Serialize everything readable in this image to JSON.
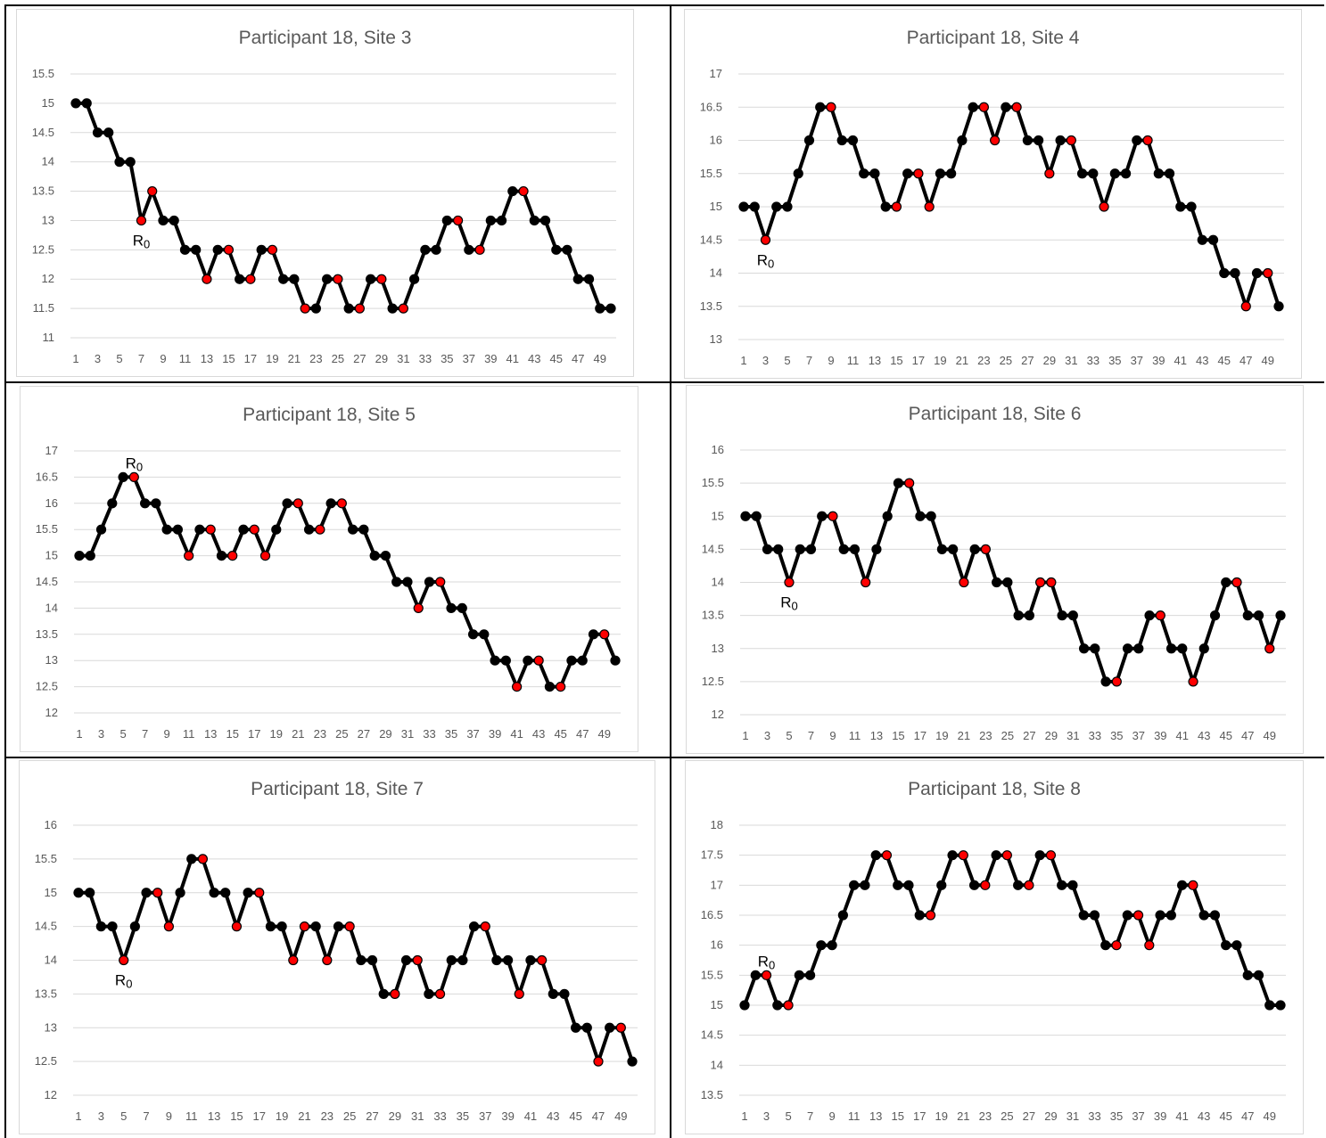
{
  "chart_data": [
    {
      "type": "line",
      "title": "Participant 18, Site 3",
      "xlabel": "",
      "ylabel": "",
      "ylim": [
        11,
        15.5
      ],
      "ystep": 0.5,
      "x_tick_labels": [
        "1",
        "3",
        "5",
        "7",
        "9",
        "11",
        "13",
        "15",
        "17",
        "19",
        "21",
        "23",
        "25",
        "27",
        "29",
        "31",
        "33",
        "35",
        "37",
        "39",
        "41",
        "43",
        "45",
        "47",
        "49"
      ],
      "y_tick_labels": [
        "11",
        "11.5",
        "12",
        "12.5",
        "13",
        "13.5",
        "14",
        "14.5",
        "15",
        "15.5"
      ],
      "values": [
        15,
        15,
        14.5,
        14.5,
        14,
        14,
        13,
        13.5,
        13,
        13,
        12.5,
        12.5,
        12,
        12.5,
        12.5,
        12,
        12,
        12.5,
        12.5,
        12,
        12,
        11.5,
        11.5,
        12,
        12,
        11.5,
        11.5,
        12,
        12,
        11.5,
        11.5,
        12,
        12.5,
        12.5,
        13,
        13,
        12.5,
        12.5,
        13,
        13,
        13.5,
        13.5,
        13,
        13,
        12.5,
        12.5,
        12,
        12,
        11.5,
        11.5
      ],
      "red_points": [
        7,
        8,
        13,
        15,
        17,
        19,
        22,
        25,
        27,
        29,
        31,
        36,
        38,
        42
      ],
      "annotation": {
        "text": "R0",
        "label_base": "R",
        "label_sub": "0",
        "x": 7,
        "position": "below"
      },
      "line_color": "#000000",
      "marker_color": "#000000",
      "highlight_color": "#ff0000",
      "grid": true
    },
    {
      "type": "line",
      "title": "Participant 18, Site 4",
      "xlabel": "",
      "ylabel": "",
      "ylim": [
        13,
        17
      ],
      "ystep": 0.5,
      "x_tick_labels": [
        "1",
        "3",
        "5",
        "7",
        "9",
        "11",
        "13",
        "15",
        "17",
        "19",
        "21",
        "23",
        "25",
        "27",
        "29",
        "31",
        "33",
        "35",
        "37",
        "39",
        "41",
        "43",
        "45",
        "47",
        "49"
      ],
      "y_tick_labels": [
        "13",
        "13.5",
        "14",
        "14.5",
        "15",
        "15.5",
        "16",
        "16.5",
        "17"
      ],
      "values": [
        15,
        15,
        14.5,
        15,
        15,
        15.5,
        16,
        16.5,
        16.5,
        16,
        16,
        15.5,
        15.5,
        15,
        15,
        15.5,
        15.5,
        15,
        15.5,
        15.5,
        16,
        16.5,
        16.5,
        16,
        16.5,
        16.5,
        16,
        16,
        15.5,
        16,
        16,
        15.5,
        15.5,
        15,
        15.5,
        15.5,
        16,
        16,
        15.5,
        15.5,
        15,
        15,
        14.5,
        14.5,
        14,
        14,
        13.5,
        14,
        14,
        13.5
      ],
      "red_points": [
        3,
        9,
        15,
        17,
        18,
        23,
        24,
        26,
        29,
        31,
        34,
        38,
        47,
        49
      ],
      "annotation": {
        "text": "R0",
        "label_base": "R",
        "label_sub": "0",
        "x": 3,
        "position": "below"
      },
      "line_color": "#000000",
      "marker_color": "#000000",
      "highlight_color": "#ff0000",
      "grid": true
    },
    {
      "type": "line",
      "title": "Participant 18, Site 5",
      "xlabel": "",
      "ylabel": "",
      "ylim": [
        12,
        17
      ],
      "ystep": 0.5,
      "x_tick_labels": [
        "1",
        "3",
        "5",
        "7",
        "9",
        "11",
        "13",
        "15",
        "17",
        "19",
        "21",
        "23",
        "25",
        "27",
        "29",
        "31",
        "33",
        "35",
        "37",
        "39",
        "41",
        "43",
        "45",
        "47",
        "49"
      ],
      "y_tick_labels": [
        "12",
        "12.5",
        "13",
        "13.5",
        "14",
        "14.5",
        "15",
        "15.5",
        "16",
        "16.5",
        "17"
      ],
      "values": [
        15,
        15,
        15.5,
        16,
        16.5,
        16.5,
        16,
        16,
        15.5,
        15.5,
        15,
        15.5,
        15.5,
        15,
        15,
        15.5,
        15.5,
        15,
        15.5,
        16,
        16,
        15.5,
        15.5,
        16,
        16,
        15.5,
        15.5,
        15,
        15,
        14.5,
        14.5,
        14,
        14.5,
        14.5,
        14,
        14,
        13.5,
        13.5,
        13,
        13,
        12.5,
        13,
        13,
        12.5,
        12.5,
        13,
        13,
        13.5,
        13.5,
        13
      ],
      "red_points": [
        6,
        11,
        13,
        15,
        17,
        18,
        21,
        23,
        25,
        32,
        34,
        41,
        43,
        45,
        49
      ],
      "annotation": {
        "text": "R0",
        "label_base": "R",
        "label_sub": "0",
        "x": 6,
        "position": "above"
      },
      "line_color": "#000000",
      "marker_color": "#000000",
      "highlight_color": "#ff0000",
      "grid": true
    },
    {
      "type": "line",
      "title": "Participant 18, Site 6",
      "xlabel": "",
      "ylabel": "",
      "ylim": [
        12,
        16
      ],
      "ystep": 0.5,
      "x_tick_labels": [
        "1",
        "3",
        "5",
        "7",
        "9",
        "11",
        "13",
        "15",
        "17",
        "19",
        "21",
        "23",
        "25",
        "27",
        "29",
        "31",
        "33",
        "35",
        "37",
        "39",
        "41",
        "43",
        "45",
        "47",
        "49"
      ],
      "y_tick_labels": [
        "12",
        "12.5",
        "13",
        "13.5",
        "14",
        "14.5",
        "15",
        "15.5",
        "16"
      ],
      "values": [
        15,
        15,
        14.5,
        14.5,
        14,
        14.5,
        14.5,
        15,
        15,
        14.5,
        14.5,
        14,
        14.5,
        15,
        15.5,
        15.5,
        15,
        15,
        14.5,
        14.5,
        14,
        14.5,
        14.5,
        14,
        14,
        13.5,
        13.5,
        14,
        14,
        13.5,
        13.5,
        13,
        13,
        12.5,
        12.5,
        13,
        13,
        13.5,
        13.5,
        13,
        13,
        12.5,
        13,
        13.5,
        14,
        14,
        13.5,
        13.5,
        13,
        13.5
      ],
      "red_points": [
        5,
        9,
        12,
        16,
        21,
        23,
        28,
        29,
        35,
        39,
        42,
        46,
        49
      ],
      "annotation": {
        "text": "R0",
        "label_base": "R",
        "label_sub": "0",
        "x": 5,
        "position": "below"
      },
      "line_color": "#000000",
      "marker_color": "#000000",
      "highlight_color": "#ff0000",
      "grid": true
    },
    {
      "type": "line",
      "title": "Participant 18, Site 7",
      "xlabel": "",
      "ylabel": "",
      "ylim": [
        12,
        16
      ],
      "ystep": 0.5,
      "x_tick_labels": [
        "1",
        "3",
        "5",
        "7",
        "9",
        "11",
        "13",
        "15",
        "17",
        "19",
        "21",
        "23",
        "25",
        "27",
        "29",
        "31",
        "33",
        "35",
        "37",
        "39",
        "41",
        "43",
        "45",
        "47",
        "49"
      ],
      "y_tick_labels": [
        "12",
        "12.5",
        "13",
        "13.5",
        "14",
        "14.5",
        "15",
        "15.5",
        "16"
      ],
      "values": [
        15,
        15,
        14.5,
        14.5,
        14,
        14.5,
        15,
        15,
        14.5,
        15,
        15.5,
        15.5,
        15,
        15,
        14.5,
        15,
        15,
        14.5,
        14.5,
        14,
        14.5,
        14.5,
        14,
        14.5,
        14.5,
        14,
        14,
        13.5,
        13.5,
        14,
        14,
        13.5,
        13.5,
        14,
        14,
        14.5,
        14.5,
        14,
        14,
        13.5,
        14,
        14,
        13.5,
        13.5,
        13,
        13,
        12.5,
        13,
        13,
        12.5
      ],
      "red_points": [
        5,
        8,
        9,
        12,
        15,
        17,
        20,
        21,
        23,
        25,
        29,
        31,
        33,
        37,
        40,
        42,
        47,
        49
      ],
      "annotation": {
        "text": "R0",
        "label_base": "R",
        "label_sub": "0",
        "x": 5,
        "position": "below"
      },
      "line_color": "#000000",
      "marker_color": "#000000",
      "highlight_color": "#ff0000",
      "grid": true
    },
    {
      "type": "line",
      "title": "Participant 18, Site 8",
      "xlabel": "",
      "ylabel": "",
      "ylim": [
        13.5,
        18
      ],
      "ystep": 0.5,
      "x_tick_labels": [
        "1",
        "3",
        "5",
        "7",
        "9",
        "11",
        "13",
        "15",
        "17",
        "19",
        "21",
        "23",
        "25",
        "27",
        "29",
        "31",
        "33",
        "35",
        "37",
        "39",
        "41",
        "43",
        "45",
        "47",
        "49"
      ],
      "y_tick_labels": [
        "13.5",
        "14",
        "14.5",
        "15",
        "15.5",
        "16",
        "16.5",
        "17",
        "17.5",
        "18"
      ],
      "values": [
        15,
        15.5,
        15.5,
        15,
        15,
        15.5,
        15.5,
        16,
        16,
        16.5,
        17,
        17,
        17.5,
        17.5,
        17,
        17,
        16.5,
        16.5,
        17,
        17.5,
        17.5,
        17,
        17,
        17.5,
        17.5,
        17,
        17,
        17.5,
        17.5,
        17,
        17,
        16.5,
        16.5,
        16,
        16,
        16.5,
        16.5,
        16,
        16.5,
        16.5,
        17,
        17,
        16.5,
        16.5,
        16,
        16,
        15.5,
        15.5,
        15,
        15
      ],
      "red_points": [
        3,
        5,
        14,
        18,
        21,
        23,
        25,
        27,
        29,
        35,
        37,
        38,
        42
      ],
      "annotation": {
        "text": "R0",
        "label_base": "R",
        "label_sub": "0",
        "x": 3,
        "position": "above"
      },
      "line_color": "#000000",
      "marker_color": "#000000",
      "highlight_color": "#ff0000",
      "grid": true
    }
  ]
}
